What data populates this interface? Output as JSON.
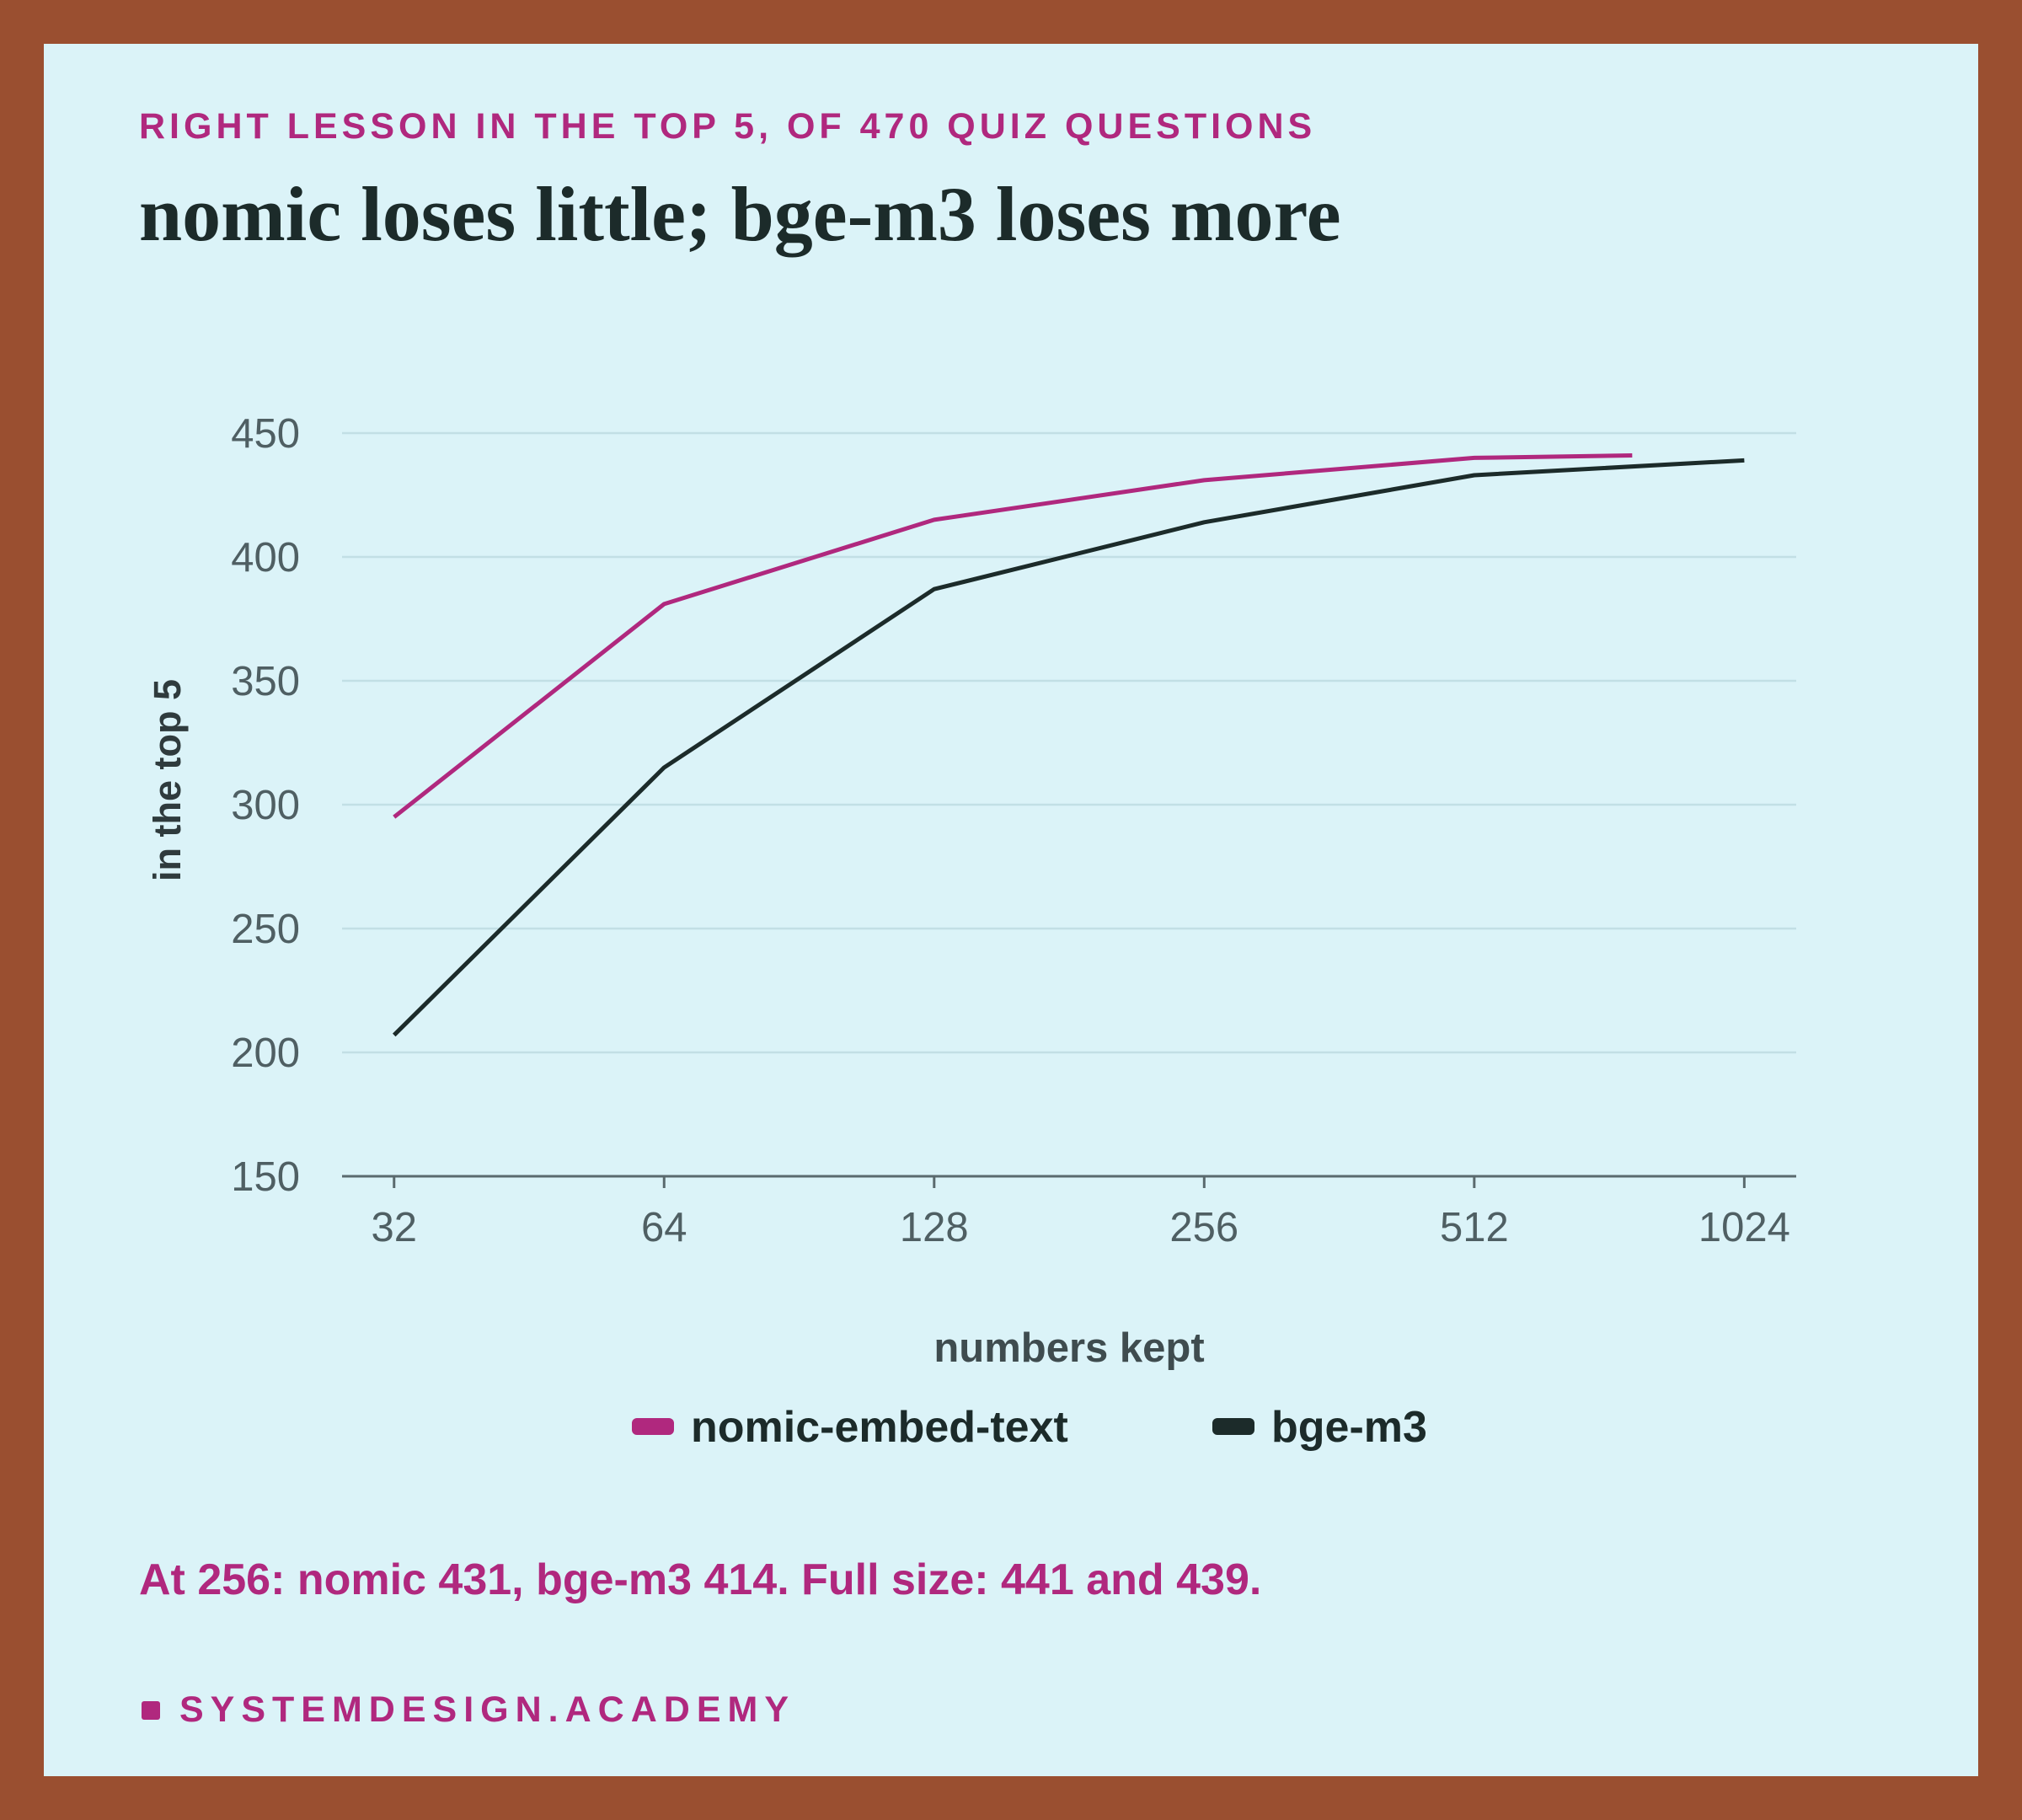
{
  "chart_data": {
    "type": "line",
    "subtitle": "RIGHT LESSON IN THE TOP 5, OF 470 QUIZ QUESTIONS",
    "title": "nomic loses little; bge-m3 loses more",
    "xlabel": "numbers kept",
    "ylabel": "in the top 5",
    "xscale": "log",
    "grid": true,
    "legend": "bottom",
    "xlim": [
      28,
      1170
    ],
    "xticks": [
      32,
      64,
      128,
      256,
      512,
      1024
    ],
    "ylim": [
      150,
      450
    ],
    "yticks": [
      150,
      200,
      250,
      300,
      350,
      400,
      450
    ],
    "series": [
      {
        "name": "nomic-embed-text",
        "color": "#b0287e",
        "x": [
          32,
          64,
          128,
          256,
          512,
          768
        ],
        "values": [
          295,
          381,
          415,
          431,
          440,
          441
        ]
      },
      {
        "name": "bge-m3",
        "color": "#1c2b2a",
        "x": [
          32,
          64,
          128,
          256,
          512,
          1024
        ],
        "values": [
          207,
          315,
          387,
          414,
          433,
          439
        ]
      }
    ],
    "note": "At 256: nomic 431, bge-m3 414. Full size: 441 and 439.",
    "footer": "SYSTEMDESIGN.ACADEMY"
  }
}
